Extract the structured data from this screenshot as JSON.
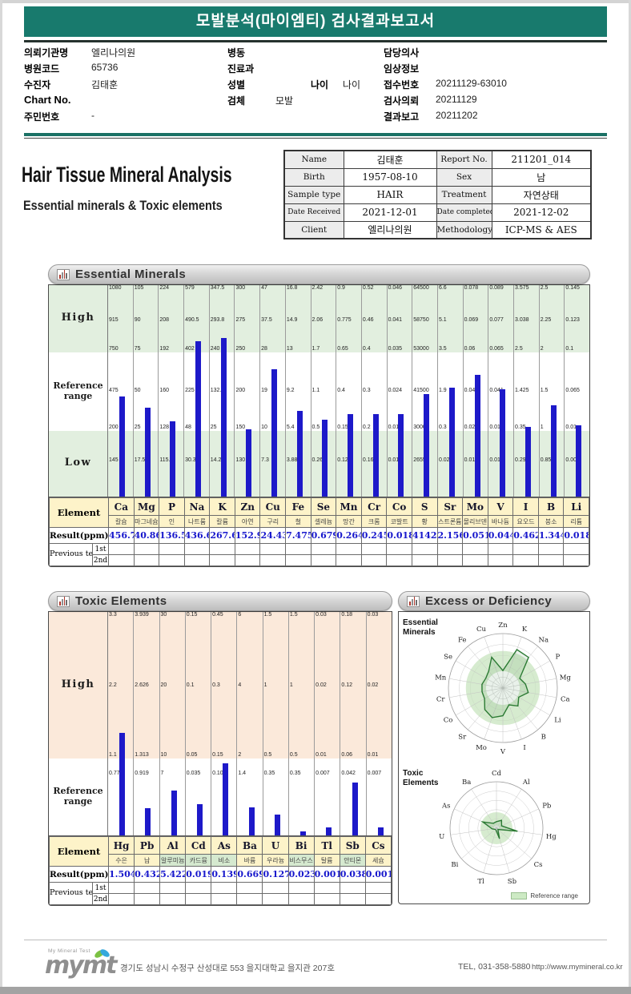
{
  "header": {
    "title": "모발분석(마이엠티) 검사결과보고서"
  },
  "patient": {
    "col1": [
      {
        "label": "의뢰기관명",
        "value": "엘리나의원"
      },
      {
        "label": "병원코드",
        "value": "65736"
      },
      {
        "label": "수진자",
        "value": "김태훈"
      },
      {
        "label": "Chart No.",
        "value": ""
      },
      {
        "label": "주민번호",
        "value": "-"
      }
    ],
    "col2": [
      {
        "label": "병동",
        "value": ""
      },
      {
        "label": "진료과",
        "value": ""
      },
      {
        "label": "성별",
        "value": "",
        "label2": "나이",
        "value2": "나이"
      },
      {
        "label": "검체",
        "value": "모발"
      }
    ],
    "col3": [
      {
        "label": "담당의사",
        "value": ""
      },
      {
        "label": "임상정보",
        "value": ""
      },
      {
        "label": "접수번호",
        "value": "20211129-63010"
      },
      {
        "label": "검사의뢰",
        "value": "20211129"
      },
      {
        "label": "결과보고",
        "value": "20211202"
      }
    ]
  },
  "report": {
    "title": "Hair Tissue Mineral Analysis",
    "subtitle": "Essential minerals & Toxic elements",
    "info_rows": [
      [
        "Name",
        "김태훈",
        "Report No.",
        "211201_014"
      ],
      [
        "Birth",
        "1957-08-10",
        "Sex",
        "남"
      ],
      [
        "Sample type",
        "HAIR",
        "Treatment",
        "자연상태"
      ],
      [
        "Date Received",
        "2021-12-01",
        "Date completed",
        "2021-12-02"
      ],
      [
        "Client",
        "엘리나의원",
        "Methodology",
        "ICP-MS & AES"
      ]
    ]
  },
  "band_labels": {
    "high": "High",
    "reference": "Reference range",
    "low": "Low"
  },
  "table_labels": {
    "element": "Element",
    "result": "Result(ppm)",
    "previous": "Previous test",
    "first": "1st",
    "second": "2nd"
  },
  "essential": {
    "title": "Essential Minerals",
    "elements": [
      {
        "symbol": "Ca",
        "korean": "칼슘",
        "result": 456.7,
        "ticks": [
          1080,
          915,
          750,
          475,
          200,
          145
        ]
      },
      {
        "symbol": "Mg",
        "korean": "마그네슘",
        "result": 40.86,
        "ticks": [
          105,
          90,
          75,
          50,
          25,
          17.5
        ]
      },
      {
        "symbol": "P",
        "korean": "인",
        "result": 136.5,
        "ticks": [
          224,
          208,
          192,
          160,
          128,
          115.2
        ]
      },
      {
        "symbol": "Na",
        "korean": "나트륨",
        "result": 436.6,
        "ticks": [
          579,
          490.5,
          402,
          225,
          48,
          30.3
        ]
      },
      {
        "symbol": "K",
        "korean": "칼륨",
        "result": 267.6,
        "ticks": [
          347.5,
          293.8,
          240,
          132.5,
          25,
          14.25
        ]
      },
      {
        "symbol": "Zn",
        "korean": "아연",
        "result": 152.9,
        "ticks": [
          300,
          275,
          250,
          200,
          150,
          130
        ]
      },
      {
        "symbol": "Cu",
        "korean": "구리",
        "result": 24.43,
        "ticks": [
          47,
          37.5,
          28,
          19,
          10,
          7.3
        ]
      },
      {
        "symbol": "Fe",
        "korean": "철",
        "result": 7.475,
        "ticks": [
          16.8,
          14.9,
          13,
          9.2,
          5.4,
          3.88
        ]
      },
      {
        "symbol": "Se",
        "korean": "셀레늄",
        "result": 0.679,
        "ticks": [
          2.42,
          2.06,
          1.7,
          1.1,
          0.5,
          0.26
        ]
      },
      {
        "symbol": "Mn",
        "korean": "망간",
        "result": 0.264,
        "ticks": [
          0.9,
          0.775,
          0.65,
          0.4,
          0.15,
          0.125
        ]
      },
      {
        "symbol": "Cr",
        "korean": "크롬",
        "result": 0.245,
        "ticks": [
          0.52,
          0.46,
          0.4,
          0.3,
          0.2,
          0.16
        ]
      },
      {
        "symbol": "Co",
        "korean": "코발트",
        "result": 0.018,
        "ticks": [
          0.046,
          0.041,
          0.035,
          0.024,
          0.013,
          0.01
        ]
      },
      {
        "symbol": "S",
        "korean": "황",
        "result": 41425,
        "ticks": [
          64500,
          58750,
          53000,
          41500,
          30000,
          26550
        ]
      },
      {
        "symbol": "Sr",
        "korean": "스트론튬",
        "result": 2.156,
        "ticks": [
          6.6,
          5.1,
          3.5,
          1.9,
          0.3,
          0.025
        ]
      },
      {
        "symbol": "Mo",
        "korean": "몰리브덴",
        "result": 0.051,
        "ticks": [
          0.078,
          0.069,
          0.06,
          0.043,
          0.025,
          0.018
        ]
      },
      {
        "symbol": "V",
        "korean": "바나듐",
        "result": 0.044,
        "ticks": [
          0.089,
          0.077,
          0.065,
          0.041,
          0.018,
          0.011
        ]
      },
      {
        "symbol": "I",
        "korean": "요오드",
        "result": 0.462,
        "ticks": [
          3.575,
          3.038,
          2.5,
          1.425,
          0.35,
          0.296
        ]
      },
      {
        "symbol": "B",
        "korean": "붕소",
        "result": 1.344,
        "ticks": [
          2.5,
          2.25,
          2,
          1.5,
          1,
          0.85
        ]
      },
      {
        "symbol": "Li",
        "korean": "리튬",
        "result": 0.018,
        "ticks": [
          0.145,
          0.123,
          0.1,
          0.065,
          0.01,
          0.008
        ]
      }
    ]
  },
  "toxic": {
    "title": "Toxic Elements",
    "elements": [
      {
        "symbol": "Hg",
        "korean": "수은",
        "result": 1.504,
        "ticks": [
          3.3,
          2.2,
          1.1,
          0.77
        ]
      },
      {
        "symbol": "Pb",
        "korean": "납",
        "result": 0.432,
        "ticks": [
          3.939,
          2.626,
          1.313,
          0.919
        ]
      },
      {
        "symbol": "Al",
        "korean": "알루미늄",
        "result": 5.422,
        "ticks": [
          30,
          20,
          10,
          7
        ],
        "green": true
      },
      {
        "symbol": "Cd",
        "korean": "카드뮴",
        "result": 0.019,
        "ticks": [
          0.15,
          0.1,
          0.05,
          0.035
        ],
        "green": true
      },
      {
        "symbol": "As",
        "korean": "비소",
        "result": 0.139,
        "ticks": [
          0.45,
          0.3,
          0.15,
          0.105
        ],
        "green": true
      },
      {
        "symbol": "Ba",
        "korean": "바륨",
        "result": 0.669,
        "ticks": [
          6,
          4,
          2,
          1.4
        ]
      },
      {
        "symbol": "U",
        "korean": "우라늄",
        "result": 0.127,
        "ticks": [
          1.5,
          1,
          0.5,
          0.35
        ]
      },
      {
        "symbol": "Bi",
        "korean": "비스무스",
        "result": 0.023,
        "ticks": [
          1.5,
          1,
          0.5,
          0.35
        ],
        "green": true
      },
      {
        "symbol": "Tl",
        "korean": "탈륨",
        "result": 0.001,
        "ticks": [
          0.03,
          0.02,
          0.01,
          0.007
        ]
      },
      {
        "symbol": "Sb",
        "korean": "안티몬",
        "result": 0.038,
        "ticks": [
          0.18,
          0.12,
          0.06,
          0.042
        ],
        "green": true
      },
      {
        "symbol": "Cs",
        "korean": "세슘",
        "result": 0.001,
        "ticks": [
          0.03,
          0.02,
          0.01,
          0.007
        ]
      }
    ]
  },
  "excess": {
    "title": "Excess or Deficiency",
    "essential_label": "Essential Minerals",
    "toxic_label": "Toxic Elements",
    "legend": "Reference range",
    "essential_axes": [
      "Zn",
      "K",
      "Na",
      "P",
      "Mg",
      "Ca",
      "Li",
      "B",
      "I",
      "V",
      "Mo",
      "Sr",
      "Co",
      "Cr",
      "Mn",
      "Se",
      "Fe",
      "Cu"
    ],
    "toxic_axes": [
      "Cd",
      "Al",
      "Pb",
      "Hg",
      "Cs",
      "Sb",
      "Tl",
      "Bi",
      "U",
      "As",
      "Ba"
    ]
  },
  "footer": {
    "brand_top": "My Mineral Test",
    "brand": "mymt",
    "address": "경기도 성남시 수정구 산성대로 553 을지대학교 을지관 207호",
    "tel": "TEL, 031-358-5880",
    "url": "http://www.mymineral.co.kr"
  }
}
